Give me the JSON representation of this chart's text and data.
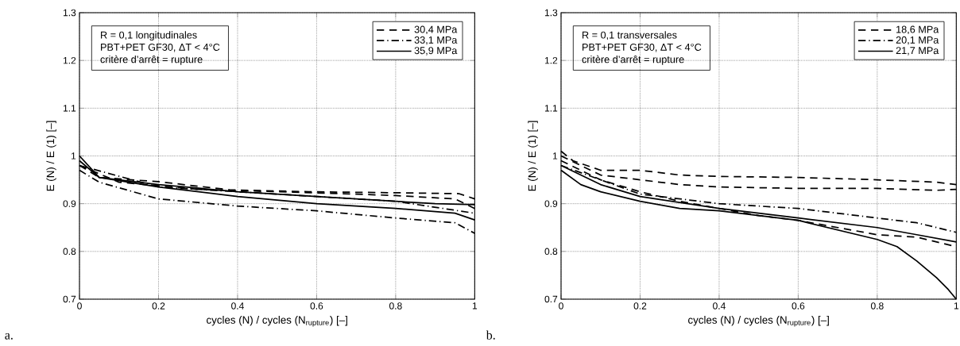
{
  "chart_data": [
    {
      "type": "line",
      "xlabel": "cycles (N) / cycles (N$_{rupture}$) [–]",
      "ylabel": "E (N) / E (1) [–]",
      "xlim": [
        0,
        1
      ],
      "ylim": [
        0.7,
        1.3
      ],
      "xticks": [
        0,
        0.2,
        0.4,
        0.6,
        0.8,
        1
      ],
      "yticks": [
        0.7,
        0.8,
        0.9,
        1,
        1.1,
        1.2,
        1.3
      ],
      "grid": true,
      "legend": "top right",
      "annotations": [
        "R = 0,1 longitudinales",
        "PBT+PET GF30, ΔT < 4°C",
        "critère d’arrêt = rupture",
        "a."
      ],
      "series": [
        {
          "name": "30,4 MPa",
          "color": "#000000",
          "line_style": "dashed",
          "x": [
            0,
            0.05,
            0.2,
            0.38,
            0.58,
            0.79,
            0.96,
            1
          ],
          "values": [
            0.98,
            0.955,
            0.946,
            0.929,
            0.925,
            0.923,
            0.921,
            0.91
          ]
        },
        {
          "color": "#000000",
          "line_style": "dashed",
          "x": [
            0,
            0.1,
            0.3,
            0.5,
            0.7,
            0.8,
            0.95,
            1
          ],
          "values": [
            0.98,
            0.945,
            0.93,
            0.925,
            0.92,
            0.917,
            0.91,
            0.89
          ]
        },
        {
          "name": "33,1 MPa",
          "color": "#000000",
          "line_style": "dashdot",
          "x": [
            0,
            0.05,
            0.2,
            0.4,
            0.6,
            0.8,
            0.95,
            1
          ],
          "values": [
            0.97,
            0.945,
            0.91,
            0.895,
            0.885,
            0.87,
            0.86,
            0.838
          ]
        },
        {
          "color": "#000000",
          "line_style": "dashdot",
          "x": [
            0,
            0.2,
            0.5,
            0.8,
            1
          ],
          "values": [
            0.98,
            0.935,
            0.92,
            0.905,
            0.88
          ]
        },
        {
          "name": "35,9 MPa",
          "color": "#000000",
          "line_style": "solid",
          "x": [
            0,
            0.05,
            0.2,
            0.4,
            0.6,
            0.8,
            0.9,
            1
          ],
          "values": [
            1.0,
            0.955,
            0.94,
            0.925,
            0.915,
            0.905,
            0.9,
            0.898
          ]
        },
        {
          "color": "#000000",
          "line_style": "solid",
          "x": [
            0,
            0.05,
            0.2,
            0.4,
            0.6,
            0.8,
            0.95,
            1
          ],
          "values": [
            0.99,
            0.955,
            0.935,
            0.915,
            0.9,
            0.89,
            0.88,
            0.866
          ]
        }
      ]
    },
    {
      "type": "line",
      "xlabel": "cycles (N) / cycles (N$_{rupture}$) [–]",
      "ylabel": "E (N) / E (1) [–]",
      "xlim": [
        0,
        1
      ],
      "ylim": [
        0.7,
        1.3
      ],
      "xticks": [
        0,
        0.2,
        0.4,
        0.6,
        0.8,
        1
      ],
      "yticks": [
        0.7,
        0.8,
        0.9,
        1,
        1.1,
        1.2,
        1.3
      ],
      "grid": true,
      "legend": "top right",
      "annotations": [
        "R = 0,1 transversales",
        "PBT+PET GF30, ΔT < 4°C",
        "critère d’arrêt = rupture",
        "b."
      ],
      "series": [
        {
          "name": "18,6 MPa",
          "color": "#000000",
          "line_style": "dashed",
          "x": [
            0,
            0.03,
            0.1,
            0.2,
            0.3,
            0.4,
            0.6,
            0.8,
            0.95,
            1
          ],
          "values": [
            1.01,
            0.99,
            0.97,
            0.97,
            0.96,
            0.957,
            0.955,
            0.95,
            0.945,
            0.94
          ]
        },
        {
          "color": "#000000",
          "line_style": "dashed",
          "x": [
            0,
            0.1,
            0.2,
            0.3,
            0.4,
            0.6,
            0.8,
            0.95,
            1
          ],
          "values": [
            1.0,
            0.96,
            0.95,
            0.94,
            0.935,
            0.932,
            0.932,
            0.928,
            0.93
          ]
        },
        {
          "color": "#000000",
          "line_style": "dashed",
          "x": [
            0,
            0.1,
            0.2,
            0.3,
            0.4,
            0.5,
            0.6,
            0.7,
            0.8,
            0.9,
            1
          ],
          "values": [
            0.99,
            0.95,
            0.925,
            0.905,
            0.89,
            0.875,
            0.865,
            0.85,
            0.835,
            0.83,
            0.81
          ]
        },
        {
          "name": "20,1 MPa",
          "color": "#000000",
          "line_style": "dashdot",
          "x": [
            0,
            0.2,
            0.4,
            0.6,
            0.8,
            0.9,
            1
          ],
          "values": [
            0.98,
            0.92,
            0.9,
            0.89,
            0.87,
            0.86,
            0.84
          ]
        },
        {
          "name": "21,7 MPa",
          "color": "#000000",
          "line_style": "solid",
          "x": [
            0,
            0.1,
            0.2,
            0.4,
            0.6,
            0.8,
            0.9,
            1
          ],
          "values": [
            0.98,
            0.94,
            0.915,
            0.89,
            0.87,
            0.85,
            0.835,
            0.82
          ]
        },
        {
          "color": "#000000",
          "line_style": "solid",
          "x": [
            0,
            0.05,
            0.1,
            0.2,
            0.3,
            0.4,
            0.5,
            0.6,
            0.7,
            0.8,
            0.85,
            0.9,
            0.95,
            0.98,
            1
          ],
          "values": [
            0.97,
            0.94,
            0.925,
            0.905,
            0.89,
            0.885,
            0.875,
            0.865,
            0.845,
            0.825,
            0.81,
            0.78,
            0.745,
            0.72,
            0.7
          ]
        }
      ]
    }
  ]
}
